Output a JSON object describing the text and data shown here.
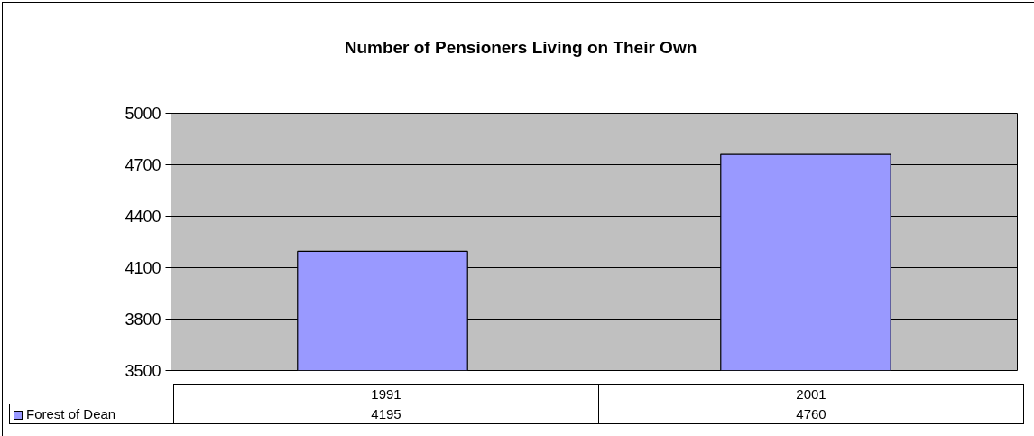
{
  "chart_data": {
    "type": "bar",
    "title": "Number of Pensioners Living on Their Own",
    "categories": [
      "1991",
      "2001"
    ],
    "series": [
      {
        "name": "Forest of Dean",
        "color": "#9999ff",
        "values": [
          4195,
          4760
        ]
      }
    ],
    "ylim": [
      3500,
      5000
    ],
    "yticks": [
      3500,
      3800,
      4100,
      4400,
      4700,
      5000
    ],
    "grid": "y",
    "legend": "bottom left",
    "data_labels": true
  }
}
